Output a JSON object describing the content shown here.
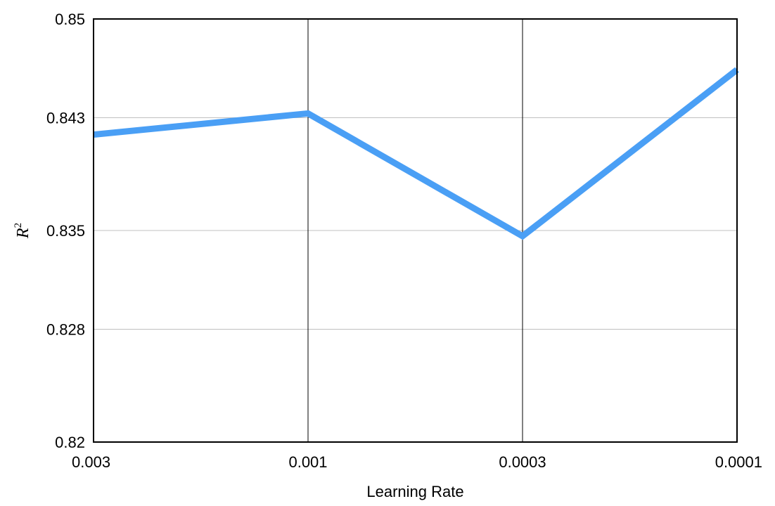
{
  "chart_data": {
    "type": "line",
    "categories": [
      "0.003",
      "0.001",
      "0.0003",
      "0.0001"
    ],
    "series": [
      {
        "values": [
          0.8418,
          0.8433,
          0.8346,
          0.8464
        ],
        "color": "#4a9ff5"
      }
    ],
    "xlabel": "Learning Rate",
    "ylabel": "R",
    "ylabel_superscript": "2",
    "ylim": [
      0.82,
      0.85
    ],
    "yticks": [
      "0.85",
      "0.843",
      "0.835",
      "0.828",
      "0.82"
    ],
    "grid": {
      "horizontal": true,
      "horizontal_color": "#c0c0c0",
      "vertical": true,
      "vertical_color": "#000000"
    }
  }
}
